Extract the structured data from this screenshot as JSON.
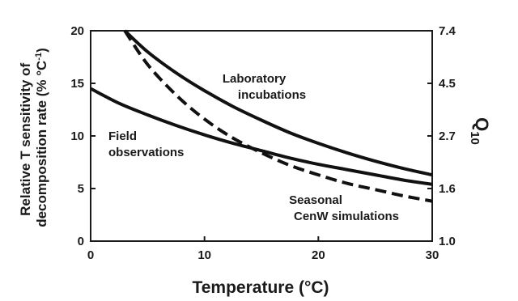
{
  "chart_data": {
    "type": "line",
    "xlabel": "Temperature (°C)",
    "ylabel_line1": "Relative T sensitivity of",
    "ylabel_line2": "decomposition rate (% °C",
    "ylabel_sup": "-1",
    "ylabel_close": ")",
    "y2label_main": "Q",
    "y2label_sub": "10",
    "xlim": [
      0,
      30
    ],
    "ylim": [
      0,
      20
    ],
    "x_ticks": [
      "0",
      "10",
      "20",
      "30"
    ],
    "y_ticks": [
      "0",
      "5",
      "10",
      "15",
      "20"
    ],
    "y2_ticks": [
      "1.0",
      "1.6",
      "2.7",
      "4.5",
      "7.4"
    ],
    "series": [
      {
        "name": "Laboratory incubations",
        "style": "solid",
        "x": [
          3,
          5,
          7.5,
          10,
          12.5,
          15,
          17.5,
          20,
          22.5,
          25,
          27.5,
          30
        ],
        "y": [
          20,
          18.0,
          16.0,
          14.3,
          12.8,
          11.5,
          10.3,
          9.3,
          8.4,
          7.6,
          6.9,
          6.3
        ]
      },
      {
        "name": "Field observations",
        "style": "solid",
        "x": [
          0,
          2.5,
          5,
          7.5,
          10,
          12.5,
          15,
          17.5,
          20,
          22.5,
          25,
          27.5,
          30
        ],
        "y": [
          14.5,
          13.1,
          12.0,
          11.0,
          10.1,
          9.3,
          8.6,
          7.9,
          7.3,
          6.8,
          6.3,
          5.8,
          5.4
        ]
      },
      {
        "name": "Seasonal CenW simulations",
        "style": "dashed",
        "x": [
          3,
          5,
          7.5,
          10,
          12.5,
          15,
          17.5,
          20,
          22.5,
          25,
          27.5,
          30
        ],
        "y": [
          20,
          16.8,
          13.9,
          11.6,
          9.8,
          8.4,
          7.2,
          6.3,
          5.5,
          4.9,
          4.3,
          3.8
        ]
      }
    ],
    "annotations": {
      "lab_line1": "Laboratory",
      "lab_line2": "incubations",
      "field_line1": "Field",
      "field_line2": "observations",
      "cenw_line1": "Seasonal",
      "cenw_line2": "CenW simulations"
    }
  }
}
